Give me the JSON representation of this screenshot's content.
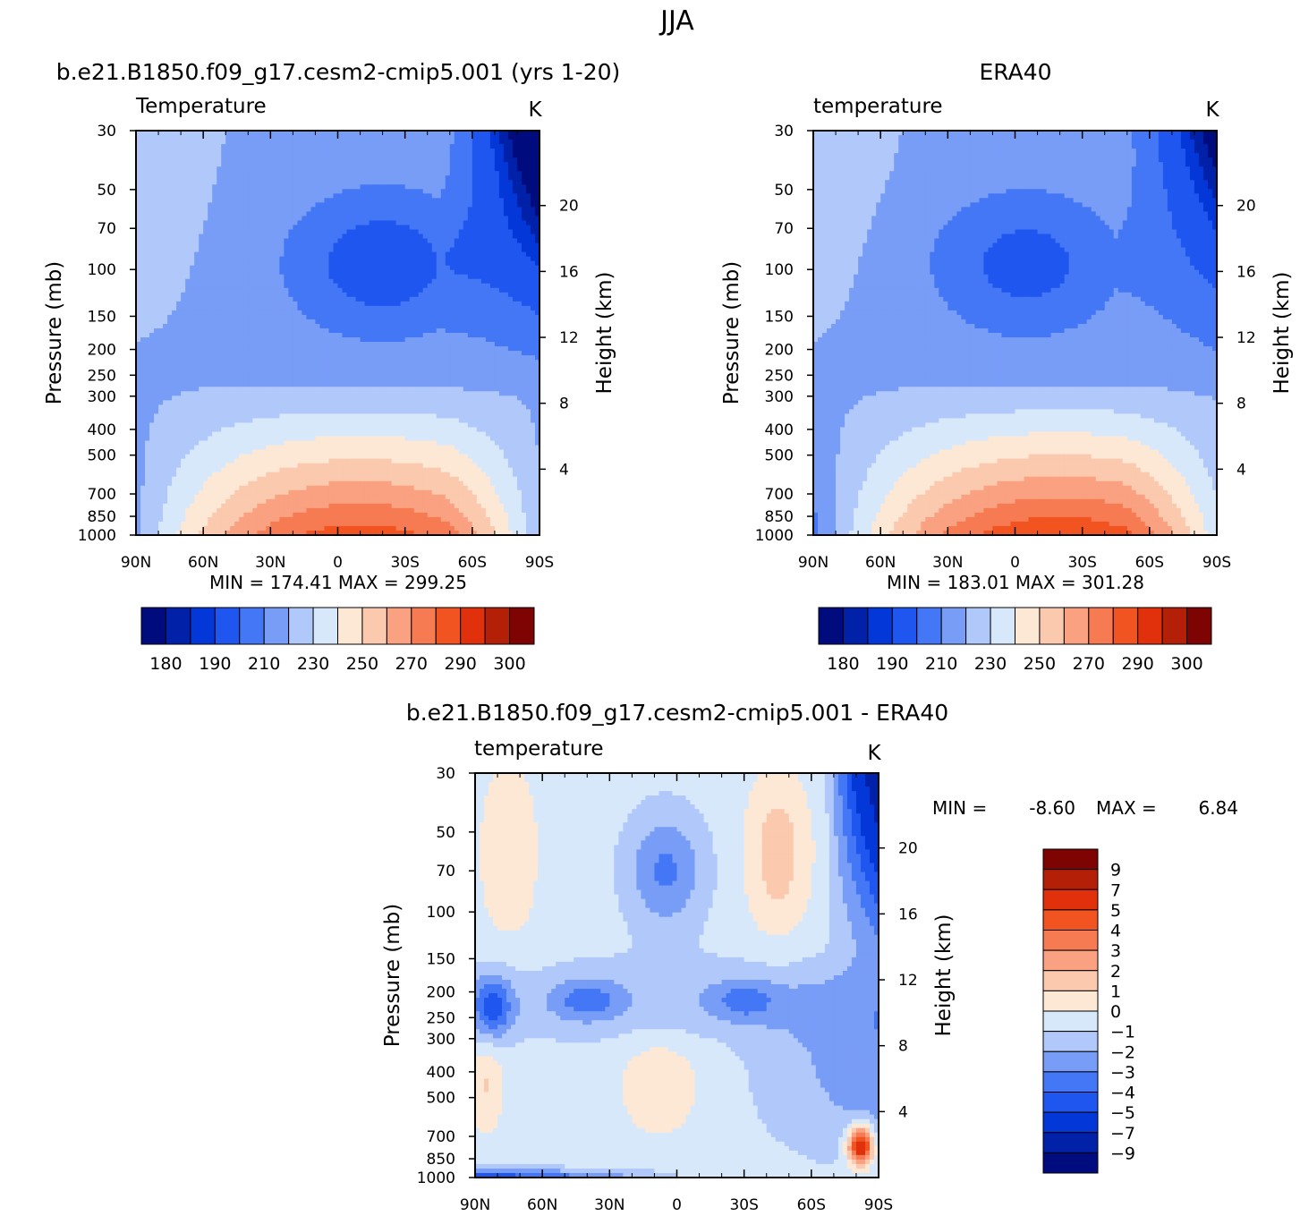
{
  "figure": {
    "title": "JJA",
    "colors": {
      "abs": [
        "#000c7d",
        "#0021a8",
        "#0437d8",
        "#1f56ef",
        "#4477f6",
        "#789df7",
        "#b0c8fa",
        "#d8e8fb",
        "#fde8d6",
        "#fbc9ae",
        "#f9a181",
        "#f67a52",
        "#f25421",
        "#e0300c",
        "#b41f08",
        "#7e0404"
      ],
      "diff": [
        "#000c7d",
        "#0021a8",
        "#0437d8",
        "#1f56ef",
        "#4477f6",
        "#789df7",
        "#b0c8fa",
        "#d8e8fb",
        "#fde8d6",
        "#fbc9ae",
        "#f9a181",
        "#f67a52",
        "#f25421",
        "#e0300c",
        "#b41f08",
        "#7e0404"
      ]
    }
  },
  "chart_data": [
    {
      "type": "heatmap",
      "panel": "model",
      "title": "b.e21.B1850.f09_g17.cesm2-cmip5.001 (yrs 1-20)",
      "subtitle": "Temperature",
      "units": "K",
      "ylabel": "Pressure (mb)",
      "y2label": "Height (km)",
      "stats": "MIN = 174.41   MAX = 299.25",
      "x_ticks": [
        "90N",
        "60N",
        "30N",
        "0",
        "30S",
        "60S",
        "90S"
      ],
      "y_ticks": [
        "30",
        "50",
        "70",
        "100",
        "150",
        "200",
        "250",
        "300",
        "400",
        "500",
        "700",
        "850",
        "1000"
      ],
      "y2_ticks": [
        "20",
        "16",
        "12",
        "8",
        "4"
      ],
      "colorbar_labels": [
        "180",
        "190",
        "210",
        "230",
        "250",
        "270",
        "290",
        "300"
      ],
      "ylim": [
        1000,
        30
      ],
      "xlim": [
        90,
        -90
      ],
      "scale": {
        "max": 285,
        "max_lat": -10,
        "base": 160,
        "warm_pole_drop": 20,
        "cold_core_lat": -20,
        "cold_core_depth": 25,
        "polar_vortex": 55
      }
    },
    {
      "type": "heatmap",
      "panel": "obs",
      "title": "ERA40",
      "subtitle": "temperature",
      "units": "K",
      "ylabel": "Pressure (mb)",
      "y2label": "Height (km)",
      "stats": "MIN = 183.01   MAX = 301.28",
      "x_ticks": [
        "90N",
        "60N",
        "30N",
        "0",
        "30S",
        "60S",
        "90S"
      ],
      "y_ticks": [
        "30",
        "50",
        "70",
        "100",
        "150",
        "200",
        "250",
        "300",
        "400",
        "500",
        "700",
        "850",
        "1000"
      ],
      "y2_ticks": [
        "20",
        "16",
        "12",
        "8",
        "4"
      ],
      "colorbar_labels": [
        "180",
        "190",
        "210",
        "230",
        "250",
        "270",
        "290",
        "300"
      ],
      "ylim": [
        1000,
        30
      ],
      "xlim": [
        90,
        -90
      ],
      "scale": {
        "max": 289,
        "max_lat": -20,
        "base": 164,
        "warm_pole_drop": 22,
        "cold_core_lat": -5,
        "cold_core_depth": 22,
        "polar_vortex": 45
      }
    },
    {
      "type": "heatmap",
      "panel": "diff",
      "title": "b.e21.B1850.f09_g17.cesm2-cmip5.001 - ERA40",
      "subtitle": "temperature",
      "units": "K",
      "ylabel": "Pressure (mb)",
      "y2label": "Height (km)",
      "stats": {
        "min_label": "MIN =",
        "min_value": "-8.60",
        "max_label": "MAX =",
        "max_value": "6.84"
      },
      "x_ticks": [
        "90N",
        "60N",
        "30N",
        "0",
        "30S",
        "60S",
        "90S"
      ],
      "y_ticks": [
        "30",
        "50",
        "70",
        "100",
        "150",
        "200",
        "250",
        "300",
        "400",
        "500",
        "700",
        "850",
        "1000"
      ],
      "y2_ticks": [
        "20",
        "16",
        "12",
        "8",
        "4"
      ],
      "colorbar_labels": [
        "9",
        "7",
        "5",
        "4",
        "3",
        "2",
        "1",
        "0",
        "-1",
        "-2",
        "-3",
        "-4",
        "-5",
        "-7",
        "-9"
      ],
      "ylim": [
        1000,
        30
      ],
      "xlim": [
        90,
        -90
      ]
    }
  ]
}
